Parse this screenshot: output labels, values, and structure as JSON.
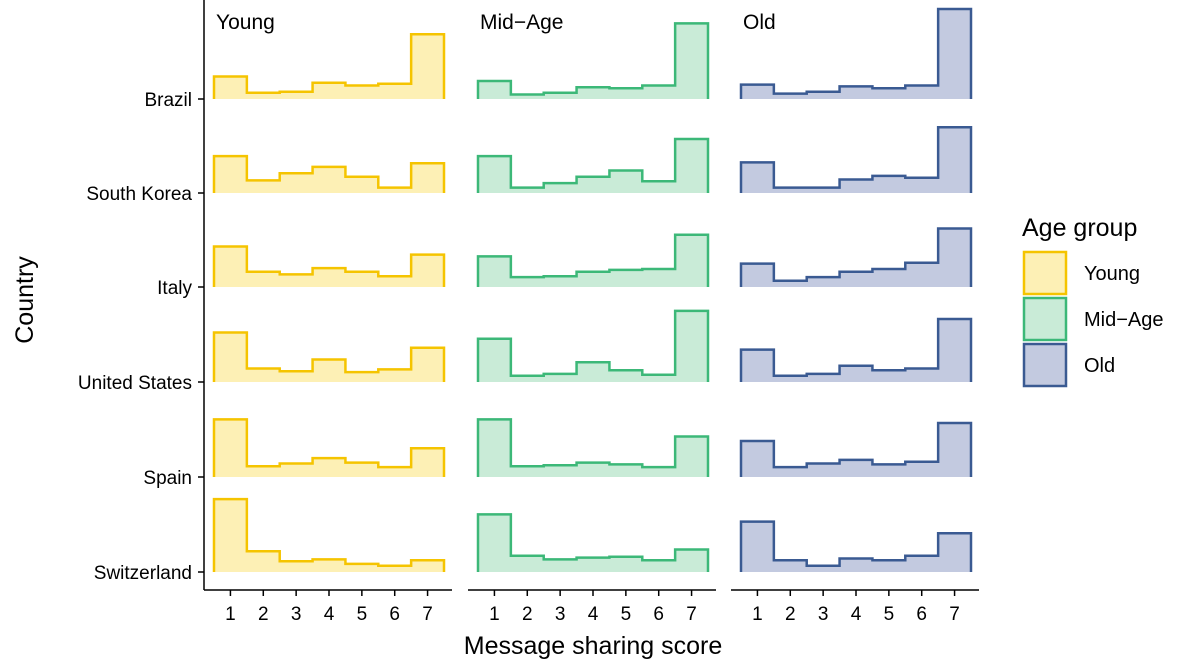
{
  "chart_data": {
    "type": "ridgeline-histogram",
    "xlabel": "Message sharing score",
    "ylabel": "Country",
    "x": [
      1,
      2,
      3,
      4,
      5,
      6,
      7
    ],
    "countries": [
      "Brazil",
      "South Korea",
      "Italy",
      "United States",
      "Spain",
      "Switzerland"
    ],
    "legend": {
      "title": "Age group",
      "placement": "right",
      "entries": [
        "Young",
        "Mid−Age",
        "Old"
      ]
    },
    "grid": false,
    "facets": [
      {
        "name": "Young",
        "color": "#F5C400",
        "fill": "#FDF0B5",
        "series": {
          "Brazil": [
            0.25,
            0.07,
            0.08,
            0.18,
            0.15,
            0.17,
            0.72
          ],
          "South Korea": [
            0.41,
            0.14,
            0.22,
            0.29,
            0.18,
            0.06,
            0.33
          ],
          "Italy": [
            0.45,
            0.17,
            0.14,
            0.21,
            0.17,
            0.12,
            0.36
          ],
          "United States": [
            0.55,
            0.15,
            0.12,
            0.25,
            0.11,
            0.14,
            0.38
          ],
          "Spain": [
            0.64,
            0.12,
            0.15,
            0.21,
            0.16,
            0.11,
            0.32
          ],
          "Switzerland": [
            0.81,
            0.23,
            0.12,
            0.14,
            0.09,
            0.07,
            0.13
          ]
        }
      },
      {
        "name": "Mid−Age",
        "color": "#3CB878",
        "fill": "#C9EBD7",
        "series": {
          "Brazil": [
            0.2,
            0.05,
            0.07,
            0.13,
            0.12,
            0.15,
            0.84
          ],
          "South Korea": [
            0.41,
            0.06,
            0.11,
            0.18,
            0.25,
            0.13,
            0.6
          ],
          "Italy": [
            0.34,
            0.11,
            0.12,
            0.17,
            0.19,
            0.2,
            0.58
          ],
          "United States": [
            0.48,
            0.07,
            0.09,
            0.22,
            0.13,
            0.08,
            0.79
          ],
          "Spain": [
            0.64,
            0.12,
            0.13,
            0.16,
            0.14,
            0.11,
            0.45
          ],
          "Switzerland": [
            0.64,
            0.18,
            0.14,
            0.16,
            0.17,
            0.13,
            0.25
          ]
        }
      },
      {
        "name": "Old",
        "color": "#3A5A92",
        "fill": "#C3CAE0",
        "series": {
          "Brazil": [
            0.16,
            0.06,
            0.08,
            0.14,
            0.12,
            0.15,
            1.0
          ],
          "South Korea": [
            0.34,
            0.06,
            0.06,
            0.15,
            0.19,
            0.17,
            0.73
          ],
          "Italy": [
            0.26,
            0.07,
            0.11,
            0.17,
            0.2,
            0.27,
            0.65
          ],
          "United States": [
            0.36,
            0.07,
            0.09,
            0.18,
            0.13,
            0.15,
            0.7
          ],
          "Spain": [
            0.4,
            0.11,
            0.15,
            0.19,
            0.14,
            0.17,
            0.6
          ],
          "Switzerland": [
            0.56,
            0.13,
            0.07,
            0.15,
            0.13,
            0.18,
            0.43
          ]
        }
      }
    ]
  }
}
